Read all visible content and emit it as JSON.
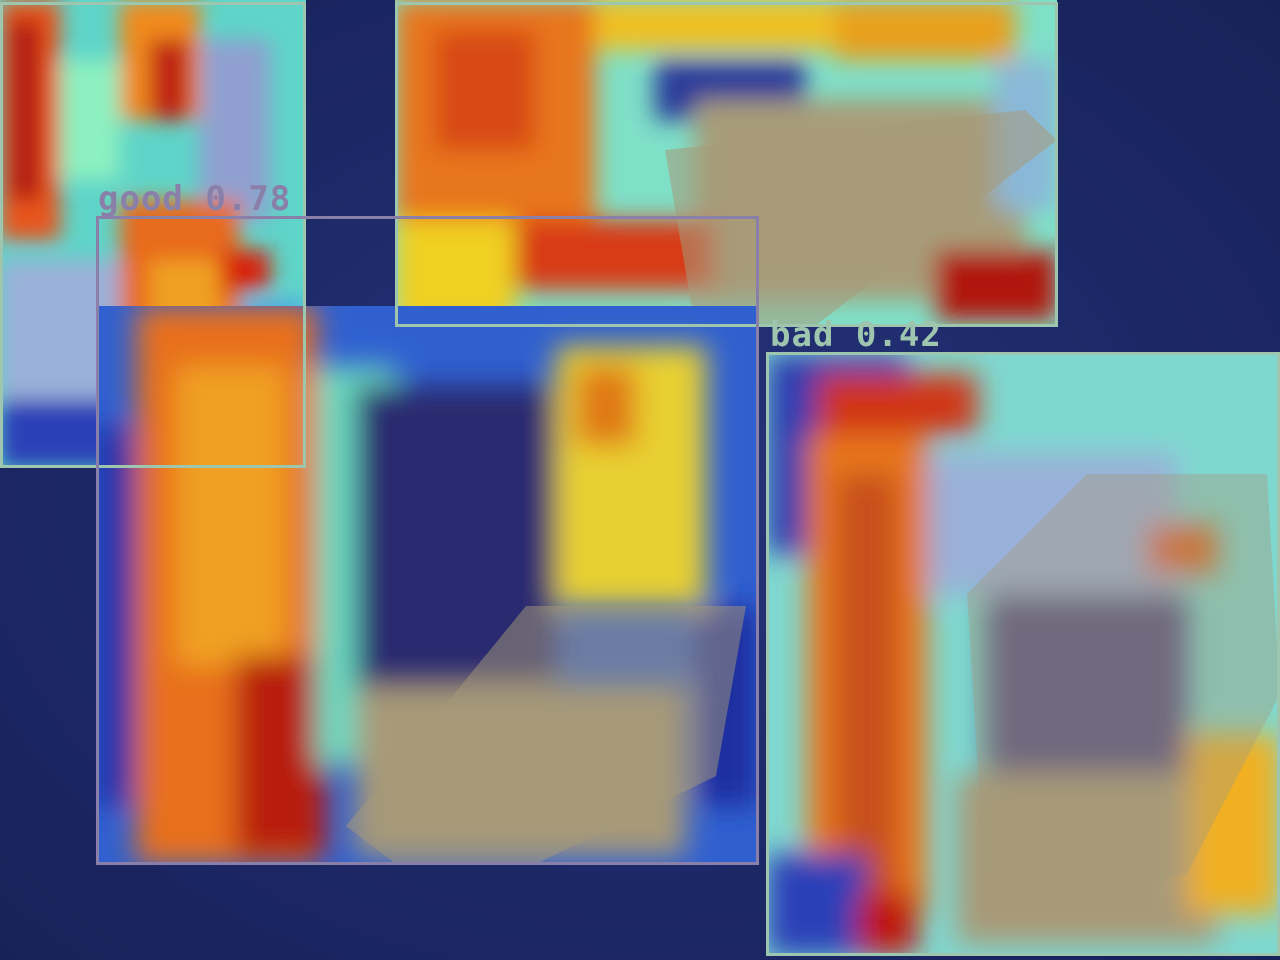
{
  "detections": [
    {
      "label": "good",
      "score": "0.78",
      "color": "#8a7fa8"
    },
    {
      "label": "bad",
      "score": "0.42",
      "color": "#9ec6ae"
    },
    {
      "label": "",
      "score": "",
      "color": "#9ec6ae"
    },
    {
      "label": "",
      "score": "",
      "color": "#9ec6ae"
    }
  ],
  "colors": {
    "background": "#1d2a6e",
    "heat_low": "#1a2fa8",
    "heat_mid": "#6fe0c0",
    "heat_high": "#f0e020",
    "heat_peak": "#e8501a",
    "heat_max": "#a01010",
    "object_tone": "#9a8f70"
  }
}
